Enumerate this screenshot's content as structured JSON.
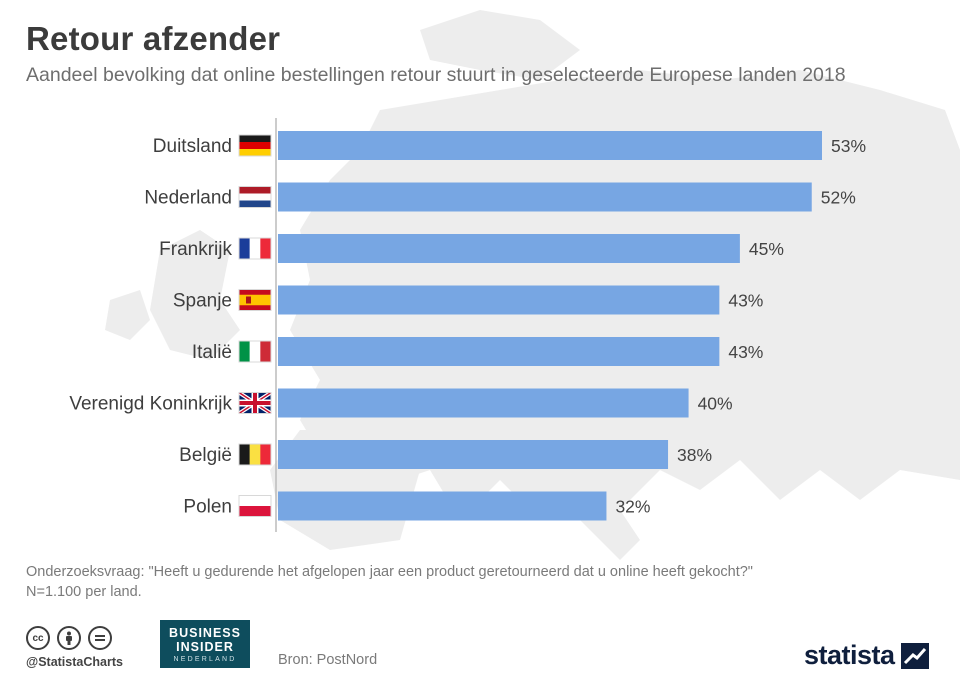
{
  "header": {
    "title": "Retour afzender",
    "subtitle": "Aandeel bevolking dat online bestellingen retour stuurt in geselecteerde Europese landen 2018"
  },
  "chart_data": {
    "type": "bar",
    "orientation": "horizontal",
    "title": "Retour afzender",
    "subtitle": "Aandeel bevolking dat online bestellingen retour stuurt in geselecteerde Europese landen 2018",
    "categories": [
      "Duitsland",
      "Nederland",
      "Frankrijk",
      "Spanje",
      "Italië",
      "Verenigd Koninkrijk",
      "België",
      "Polen"
    ],
    "values": [
      53,
      52,
      45,
      43,
      43,
      40,
      38,
      32
    ],
    "value_labels": [
      "53%",
      "52%",
      "45%",
      "43%",
      "43%",
      "40%",
      "38%",
      "32%"
    ],
    "flags": [
      "flag-germany",
      "flag-netherlands",
      "flag-france",
      "flag-spain",
      "flag-italy",
      "flag-united-kingdom",
      "flag-belgium",
      "flag-poland"
    ],
    "unit": "%",
    "xlim": [
      0,
      53
    ],
    "grid": false,
    "legend": "none",
    "bar_color": "#77a6e3"
  },
  "footer": {
    "question": "Onderzoeksvraag: \"Heeft u gedurende het afgelopen jaar een product geretourneerd dat u online heeft gekocht?\"",
    "sample": "N=1.100 per land.",
    "handle": "@StatistaCharts",
    "source": "Bron: PostNord",
    "publisher": {
      "line1": "BUSINESS",
      "line2": "INSIDER",
      "line3": "NEDERLAND"
    },
    "brand": "statista",
    "license_icons": [
      "cc-icon",
      "by-icon",
      "nd-icon"
    ]
  },
  "colors": {
    "title": "#3b3b3b",
    "subtitle": "#6e6e6e",
    "bar": "#77a6e3",
    "brand_dark": "#0f1f3d",
    "publisher_bg": "#0e4d5d"
  }
}
